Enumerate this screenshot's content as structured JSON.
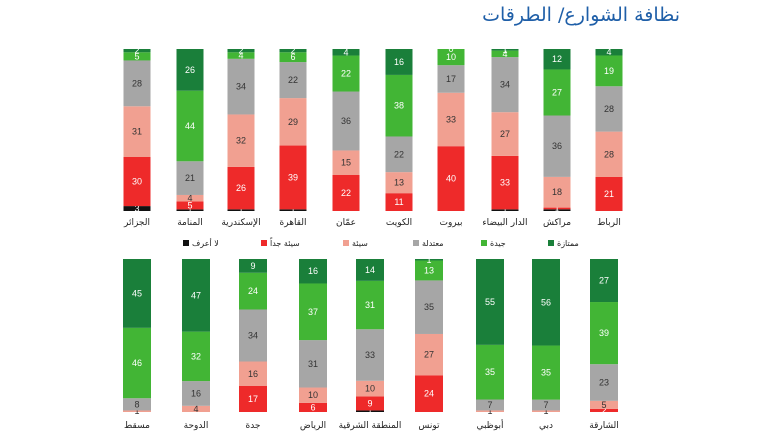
{
  "title": "نظافة الشوارع/ الطرقات",
  "legend": {
    "labels": [
      "لا أعرف",
      "سيئة جداً",
      "سيئة",
      "معتدلة",
      "جيدة",
      "ممتازة"
    ]
  },
  "colors": {
    "dont_know": "#111111",
    "very_bad": "#ee2a2a",
    "bad": "#f1a091",
    "moderate": "#a6a6a6",
    "good": "#42b535",
    "excellent": "#1a7f3a",
    "title": "#1f5fa8"
  },
  "chart_data": [
    {
      "type": "bar",
      "stacked": true,
      "orientation": "vertical",
      "categories": [
        "الجزائر",
        "المنامة",
        "الإسكندرية",
        "القاهرة",
        "عمّان",
        "الكويت",
        "بيروت",
        "الدار البيضاء",
        "مراكش",
        "الرباط"
      ],
      "series": [
        {
          "name": "لا أعرف",
          "color_key": "dont_know",
          "values": [
            3,
            1,
            1,
            1,
            0,
            0,
            0,
            1,
            1,
            0
          ]
        },
        {
          "name": "سيئة جداً",
          "color_key": "very_bad",
          "values": [
            30,
            5,
            26,
            39,
            22,
            11,
            40,
            33,
            1,
            21
          ]
        },
        {
          "name": "سيئة",
          "color_key": "bad",
          "values": [
            31,
            4,
            32,
            29,
            15,
            13,
            33,
            27,
            18,
            28
          ]
        },
        {
          "name": "معتدلة",
          "color_key": "moderate",
          "values": [
            28,
            21,
            34,
            22,
            36,
            22,
            17,
            34,
            36,
            28
          ]
        },
        {
          "name": "جيدة",
          "color_key": "good",
          "values": [
            5,
            44,
            4,
            6,
            22,
            38,
            10,
            4,
            27,
            19
          ]
        },
        {
          "name": "ممتازة",
          "color_key": "excellent",
          "values": [
            2,
            26,
            2,
            2,
            4,
            16,
            0,
            1,
            12,
            4
          ]
        }
      ]
    },
    {
      "type": "bar",
      "stacked": true,
      "orientation": "vertical",
      "categories": [
        "مسقط",
        "الدوحة",
        "جدة",
        "الرياض",
        "المنطقة الشرقية",
        "تونس",
        "أبوظبي",
        "دبي",
        "الشارقة"
      ],
      "series": [
        {
          "name": "لا أعرف",
          "color_key": "dont_know",
          "values": [
            0,
            0,
            0,
            0,
            1,
            0,
            0,
            0,
            0
          ]
        },
        {
          "name": "سيئة جداً",
          "color_key": "very_bad",
          "values": [
            0,
            0,
            17,
            6,
            9,
            24,
            0,
            0,
            2
          ]
        },
        {
          "name": "سيئة",
          "color_key": "bad",
          "values": [
            1,
            4,
            16,
            10,
            10,
            27,
            1,
            1,
            5
          ]
        },
        {
          "name": "معتدلة",
          "color_key": "moderate",
          "values": [
            8,
            16,
            34,
            31,
            33,
            35,
            7,
            7,
            23
          ]
        },
        {
          "name": "جيدة",
          "color_key": "good",
          "values": [
            46,
            32,
            24,
            37,
            31,
            13,
            35,
            35,
            39
          ]
        },
        {
          "name": "ممتازة",
          "color_key": "excellent",
          "values": [
            45,
            47,
            9,
            16,
            14,
            1,
            55,
            56,
            27
          ]
        }
      ]
    }
  ]
}
